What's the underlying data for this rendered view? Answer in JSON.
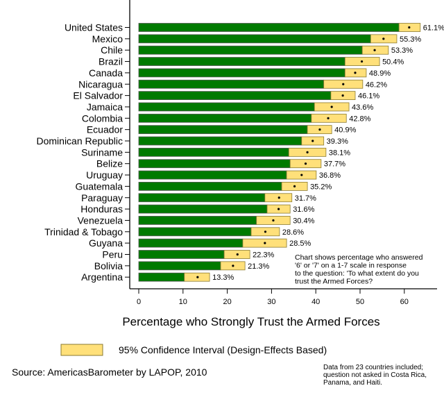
{
  "chart_data": {
    "type": "bar",
    "orientation": "horizontal",
    "title": "",
    "xlabel": "Percentage who Strongly Trust the Armed Forces",
    "ylabel": "",
    "xlim": [
      0,
      65
    ],
    "xticks": [
      0,
      10,
      20,
      30,
      40,
      50,
      60
    ],
    "grid": false,
    "categories": [
      "United States",
      "Mexico",
      "Chile",
      "Brazil",
      "Canada",
      "Nicaragua",
      "El Salvador",
      "Jamaica",
      "Colombia",
      "Ecuador",
      "Dominican Republic",
      "Suriname",
      "Belize",
      "Uruguay",
      "Guatemala",
      "Paraguay",
      "Honduras",
      "Venezuela",
      "Trinidad & Tobago",
      "Guyana",
      "Peru",
      "Bolivia",
      "Argentina"
    ],
    "values": [
      61.1,
      55.3,
      53.3,
      50.4,
      48.9,
      46.2,
      46.1,
      43.6,
      42.8,
      40.9,
      39.3,
      38.1,
      37.7,
      36.8,
      35.2,
      31.7,
      31.6,
      30.4,
      28.6,
      28.5,
      22.3,
      21.3,
      13.3
    ],
    "value_labels": [
      "61.1%",
      "55.3%",
      "53.3%",
      "50.4%",
      "48.9%",
      "46.2%",
      "46.1%",
      "43.6%",
      "42.8%",
      "40.9%",
      "39.3%",
      "38.1%",
      "37.7%",
      "36.8%",
      "35.2%",
      "31.7%",
      "31.6%",
      "30.4%",
      "28.6%",
      "28.5%",
      "22.3%",
      "21.3%",
      "13.3%"
    ],
    "ci_lower": [
      58.8,
      52.4,
      50.5,
      46.6,
      46.6,
      41.8,
      43.4,
      39.7,
      39.0,
      38.1,
      36.8,
      33.9,
      34.2,
      33.4,
      32.3,
      28.5,
      29.0,
      26.6,
      25.4,
      23.5,
      19.3,
      18.5,
      10.3
    ],
    "ci_upper": [
      63.6,
      58.3,
      56.4,
      54.4,
      51.4,
      50.6,
      48.9,
      47.5,
      46.9,
      43.6,
      41.8,
      42.3,
      41.2,
      40.1,
      38.1,
      34.6,
      34.2,
      34.2,
      31.8,
      33.4,
      25.1,
      24.0,
      16.0
    ],
    "colors": {
      "bar": "#007a00",
      "ci": "#ffe07a",
      "ci_border": "#8a7a30",
      "point": "#000000"
    },
    "legend": {
      "label": "95% Confidence Interval (Design-Effects Based)",
      "placement": "bottom"
    },
    "annotation": [
      "Chart shows percentage who answered",
      "'6' or '7' on a 1-7 scale in response",
      "to the question: 'To what extent do you",
      "trust the Armed Forces?"
    ],
    "source": "Source: AmericasBarometer by LAPOP, 2010",
    "footnote": [
      "Data from 23 countries included;",
      "question not asked in Costa Rica,",
      "Panama, and Haiti."
    ]
  }
}
